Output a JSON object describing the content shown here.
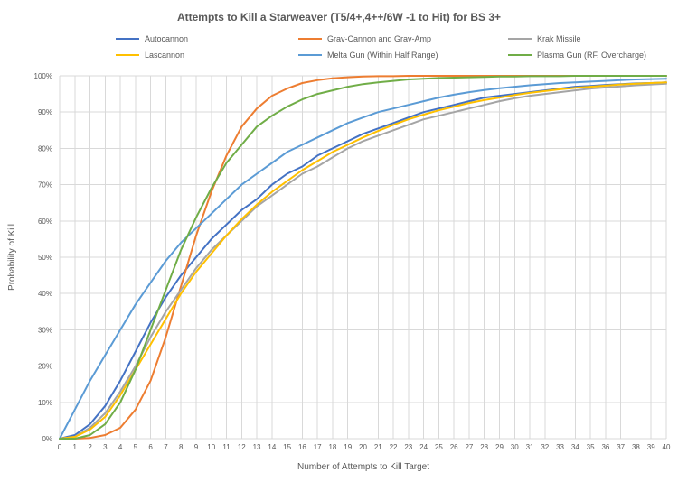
{
  "chart_data": {
    "type": "line",
    "title": "Attempts to Kill a Starweaver (T5/4+,4++/6W -1 to Hit) for BS 3+",
    "xlabel": "Number of Attempts to Kill Target",
    "ylabel": "Probability of Kill",
    "legend_position": "top",
    "grid": true,
    "ylim": [
      0,
      100
    ],
    "xlim": [
      0,
      40
    ],
    "x": [
      0,
      1,
      2,
      3,
      4,
      5,
      6,
      7,
      8,
      9,
      10,
      11,
      12,
      13,
      14,
      15,
      16,
      17,
      18,
      19,
      20,
      21,
      22,
      23,
      24,
      25,
      26,
      27,
      28,
      29,
      30,
      31,
      32,
      33,
      34,
      35,
      36,
      37,
      38,
      39,
      40
    ],
    "y_ticks": [
      "0%",
      "10%",
      "20%",
      "30%",
      "40%",
      "50%",
      "60%",
      "70%",
      "80%",
      "90%",
      "100%"
    ],
    "colors": {
      "grid": "#D9D9D9",
      "text": "#595959"
    },
    "series": [
      {
        "name": "Autocannon",
        "color": "#4472C4",
        "values": [
          0,
          1,
          4,
          9,
          16,
          24,
          32,
          39,
          45,
          50,
          55,
          59,
          63,
          66,
          70,
          73,
          75,
          78,
          80,
          82,
          84,
          85.5,
          87,
          88.5,
          90,
          91,
          92,
          93,
          94,
          94.5,
          95,
          95.5,
          96,
          96.5,
          97,
          97.2,
          97.5,
          97.7,
          97.9,
          98,
          98.2
        ]
      },
      {
        "name": "Grav-Cannon and Grav-Amp",
        "color": "#ED7D31",
        "values": [
          0,
          0,
          0.2,
          1,
          3,
          8,
          16,
          28,
          42,
          56,
          68,
          78,
          86,
          91,
          94.5,
          96.5,
          98,
          98.8,
          99.3,
          99.6,
          99.8,
          99.9,
          99.9,
          100,
          100,
          100,
          100,
          100,
          100,
          100,
          100,
          100,
          100,
          100,
          100,
          100,
          100,
          100,
          100,
          100,
          100
        ]
      },
      {
        "name": "Krak Missile",
        "color": "#A5A5A5",
        "values": [
          0,
          0.5,
          3,
          7,
          13,
          20,
          28,
          35,
          41,
          47,
          52,
          56,
          60,
          64,
          67,
          70,
          73,
          75,
          77.5,
          80,
          82,
          83.5,
          85,
          86.5,
          88,
          89,
          90,
          91,
          92,
          93,
          93.8,
          94.5,
          95,
          95.5,
          96,
          96.5,
          96.8,
          97.1,
          97.4,
          97.6,
          97.8
        ]
      },
      {
        "name": "Lascannon",
        "color": "#FFC000",
        "values": [
          0,
          0.5,
          2.5,
          6,
          12,
          19,
          26,
          33,
          40,
          46,
          51,
          56,
          60.5,
          64.5,
          68,
          71,
          74,
          76.5,
          79,
          81,
          83,
          84.8,
          86.5,
          88,
          89.3,
          90.5,
          91.5,
          92.5,
          93.3,
          94,
          94.7,
          95.3,
          95.8,
          96.3,
          96.7,
          97,
          97.3,
          97.6,
          97.8,
          98,
          98.2
        ]
      },
      {
        "name": "Melta Gun (Within Half Range)",
        "color": "#5B9BD5",
        "values": [
          0,
          8,
          16,
          23,
          30,
          37,
          43,
          49,
          54,
          58,
          62,
          66,
          70,
          73,
          76,
          79,
          81,
          83,
          85,
          87,
          88.5,
          90,
          91,
          92,
          93,
          94,
          94.8,
          95.5,
          96.1,
          96.6,
          97,
          97.4,
          97.7,
          98,
          98.2,
          98.4,
          98.6,
          98.8,
          99,
          99.1,
          99.2
        ]
      },
      {
        "name": "Plasma Gun (RF, Overcharge)",
        "color": "#70AD47",
        "values": [
          0,
          0,
          1,
          4,
          10,
          19,
          30,
          41,
          52,
          61,
          69,
          76,
          81,
          86,
          89,
          91.5,
          93.5,
          95,
          96,
          97,
          97.7,
          98.2,
          98.6,
          99,
          99.2,
          99.4,
          99.5,
          99.6,
          99.7,
          99.8,
          99.8,
          99.9,
          99.9,
          99.9,
          100,
          100,
          100,
          100,
          100,
          100,
          100
        ]
      }
    ]
  }
}
